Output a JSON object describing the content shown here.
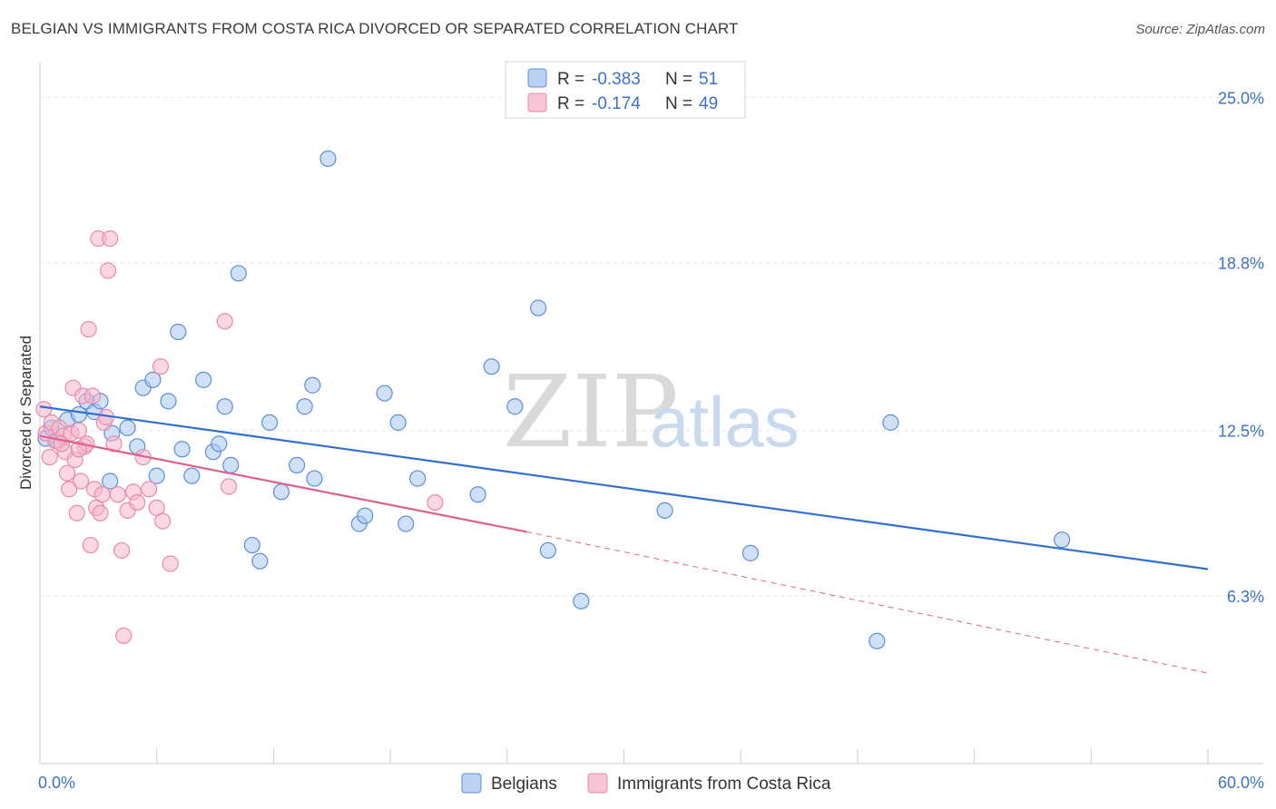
{
  "header": {
    "title": "BELGIAN VS IMMIGRANTS FROM COSTA RICA DIVORCED OR SEPARATED CORRELATION CHART",
    "source": "Source: ZipAtlas.com"
  },
  "watermark": {
    "zip": "ZIP",
    "atlas": "atlas"
  },
  "legend": {
    "rows": [
      {
        "r_label": "R =",
        "r_value": "-0.383",
        "n_label": "N =",
        "n_value": "51",
        "color": "#a9c6ef"
      },
      {
        "r_label": "R =",
        "r_value": "-0.174",
        "n_label": "N =",
        "n_value": "49",
        "color": "#f6b6cb"
      }
    ]
  },
  "bottom_legend": [
    {
      "label": "Belgians",
      "color": "#a9c6ef"
    },
    {
      "label": "Immigrants from Costa Rica",
      "color": "#f6b6cb"
    }
  ],
  "chart_data": {
    "type": "scatter",
    "title": "BELGIAN VS IMMIGRANTS FROM COSTA RICA DIVORCED OR SEPARATED CORRELATION CHART",
    "xlabel": "",
    "ylabel": "Divorced or Separated",
    "xlim": [
      0,
      60
    ],
    "ylim": [
      0,
      26
    ],
    "x_tick_labels": [
      "0.0%",
      "60.0%"
    ],
    "y_ticks": [
      6.3,
      12.5,
      18.8,
      25.0
    ],
    "y_tick_labels": [
      "6.3%",
      "12.5%",
      "18.8%",
      "25.0%"
    ],
    "grid": "horizontal dashed",
    "legend_position": "top-center",
    "series": [
      {
        "name": "Belgians",
        "color": "#5b8fd6",
        "fill": "#a9c6ef",
        "trend": {
          "x": [
            0,
            60
          ],
          "y": [
            13.4,
            7.3
          ],
          "style": "solid",
          "color": "#2f6fcf"
        },
        "points": [
          [
            0.3,
            12.2
          ],
          [
            0.6,
            12.6
          ],
          [
            1.4,
            12.9
          ],
          [
            2.0,
            13.1
          ],
          [
            2.4,
            13.6
          ],
          [
            2.8,
            13.2
          ],
          [
            3.7,
            12.4
          ],
          [
            3.6,
            10.6
          ],
          [
            4.5,
            12.6
          ],
          [
            5.0,
            11.9
          ],
          [
            5.3,
            14.1
          ],
          [
            5.8,
            14.4
          ],
          [
            6.0,
            10.8
          ],
          [
            6.6,
            13.6
          ],
          [
            7.1,
            16.2
          ],
          [
            7.3,
            11.8
          ],
          [
            7.8,
            10.8
          ],
          [
            8.4,
            14.4
          ],
          [
            8.9,
            11.7
          ],
          [
            9.2,
            12.0
          ],
          [
            9.5,
            13.4
          ],
          [
            9.8,
            11.2
          ],
          [
            10.2,
            18.4
          ],
          [
            10.9,
            8.2
          ],
          [
            11.3,
            7.6
          ],
          [
            11.8,
            12.8
          ],
          [
            12.4,
            10.2
          ],
          [
            13.2,
            11.2
          ],
          [
            13.6,
            13.4
          ],
          [
            14.0,
            14.2
          ],
          [
            14.1,
            10.7
          ],
          [
            14.8,
            22.7
          ],
          [
            16.4,
            9.0
          ],
          [
            16.7,
            9.3
          ],
          [
            17.7,
            13.9
          ],
          [
            18.4,
            12.8
          ],
          [
            18.8,
            9.0
          ],
          [
            19.4,
            10.7
          ],
          [
            22.5,
            10.1
          ],
          [
            23.2,
            14.9
          ],
          [
            24.4,
            13.4
          ],
          [
            25.6,
            17.1
          ],
          [
            26.1,
            8.0
          ],
          [
            27.8,
            6.1
          ],
          [
            32.1,
            9.5
          ],
          [
            36.5,
            7.9
          ],
          [
            43.0,
            4.6
          ],
          [
            43.7,
            12.8
          ],
          [
            52.5,
            8.4
          ],
          [
            0.9,
            12.1
          ],
          [
            3.1,
            13.6
          ]
        ]
      },
      {
        "name": "Immigrants from Costa Rica",
        "color": "#e98aaa",
        "fill": "#f6b6cb",
        "trend": {
          "x": [
            0,
            25
          ],
          "y": [
            12.3,
            8.7
          ],
          "style": "solid",
          "color": "#e0608d",
          "extension": {
            "x": [
              25,
              60
            ],
            "y": [
              8.7,
              3.4
            ],
            "style": "dashed"
          }
        },
        "points": [
          [
            0.2,
            13.3
          ],
          [
            0.3,
            12.4
          ],
          [
            0.5,
            11.5
          ],
          [
            0.6,
            12.8
          ],
          [
            0.8,
            12.1
          ],
          [
            1.0,
            12.6
          ],
          [
            1.2,
            12.3
          ],
          [
            1.3,
            11.7
          ],
          [
            1.4,
            10.9
          ],
          [
            1.5,
            10.3
          ],
          [
            1.6,
            12.4
          ],
          [
            1.7,
            14.1
          ],
          [
            1.8,
            11.4
          ],
          [
            1.9,
            9.4
          ],
          [
            2.0,
            12.5
          ],
          [
            2.1,
            10.6
          ],
          [
            2.2,
            13.8
          ],
          [
            2.3,
            11.9
          ],
          [
            2.4,
            12.0
          ],
          [
            2.5,
            16.3
          ],
          [
            2.6,
            8.2
          ],
          [
            2.7,
            13.8
          ],
          [
            2.8,
            10.3
          ],
          [
            2.9,
            9.6
          ],
          [
            3.0,
            19.7
          ],
          [
            3.1,
            9.4
          ],
          [
            3.2,
            10.1
          ],
          [
            3.3,
            12.8
          ],
          [
            3.4,
            13.0
          ],
          [
            3.5,
            18.5
          ],
          [
            3.6,
            19.7
          ],
          [
            3.8,
            12.0
          ],
          [
            4.0,
            10.1
          ],
          [
            4.2,
            8.0
          ],
          [
            4.3,
            4.8
          ],
          [
            4.5,
            9.5
          ],
          [
            4.8,
            10.2
          ],
          [
            5.0,
            9.8
          ],
          [
            5.3,
            11.5
          ],
          [
            5.6,
            10.3
          ],
          [
            6.0,
            9.6
          ],
          [
            6.2,
            14.9
          ],
          [
            6.3,
            9.1
          ],
          [
            6.7,
            7.5
          ],
          [
            9.5,
            16.6
          ],
          [
            9.7,
            10.4
          ],
          [
            20.3,
            9.8
          ],
          [
            2.0,
            11.8
          ],
          [
            1.1,
            12.0
          ]
        ]
      }
    ]
  }
}
